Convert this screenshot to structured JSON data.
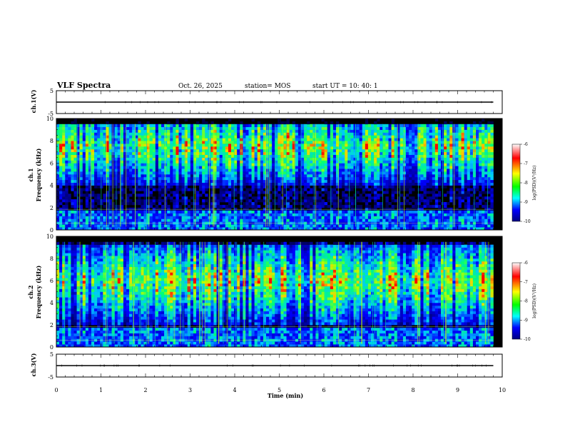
{
  "header": {
    "title": "VLF Spectra",
    "date": "Oct. 26, 2025",
    "station": "station= MOS",
    "start": "start  UT =   10: 40: 1"
  },
  "colorbar": {
    "label": "log(PSD)(V²/Hz)",
    "ticks": [
      "-6",
      "-7",
      "-8",
      "-9",
      "-10"
    ],
    "colors": [
      "#ffffff",
      "#ff0000",
      "#ffff00",
      "#00ff00",
      "#00ffff",
      "#0000ff",
      "#000080"
    ]
  },
  "chart_data": [
    {
      "type": "line",
      "name": "ch1-waveform",
      "ylabel": "ch.1(V)",
      "ylim": [
        -5,
        5
      ],
      "yticks": [
        "5",
        "-5"
      ],
      "x": [
        0,
        9.8
      ],
      "values": [
        0,
        0
      ]
    },
    {
      "type": "heatmap",
      "name": "ch1-spectrogram",
      "ylabel": "ch.1\nFrequency (kHz)",
      "ylabel_lines": [
        "ch.1",
        "Frequency (kHz)"
      ],
      "xlim": [
        0,
        10
      ],
      "ylim": [
        0,
        10
      ],
      "yticks": [
        "0",
        "2",
        "4",
        "6",
        "8",
        "10"
      ],
      "data_xlim": [
        0,
        9.8
      ],
      "band_kHz": [
        5,
        10
      ]
    },
    {
      "type": "heatmap",
      "name": "ch2-spectrogram",
      "ylabel": "ch.2\nFrequency (kHz)",
      "ylabel_lines": [
        "ch.2",
        "Frequency (kHz)"
      ],
      "xlim": [
        0,
        10
      ],
      "ylim": [
        0,
        10
      ],
      "yticks": [
        "0",
        "2",
        "4",
        "6",
        "8",
        "10"
      ],
      "data_xlim": [
        0,
        9.8
      ],
      "band_kHz": [
        3,
        9
      ]
    },
    {
      "type": "line",
      "name": "ch3-waveform",
      "ylabel": "ch.3(V)",
      "ylim": [
        -5,
        5
      ],
      "yticks": [
        "5",
        "-5"
      ],
      "x": [
        0,
        9.8
      ],
      "values": [
        0,
        0
      ]
    }
  ],
  "xaxis": {
    "label": "Time (min)",
    "ticks": [
      "0",
      "1",
      "2",
      "3",
      "4",
      "5",
      "6",
      "7",
      "8",
      "9",
      "10"
    ]
  }
}
